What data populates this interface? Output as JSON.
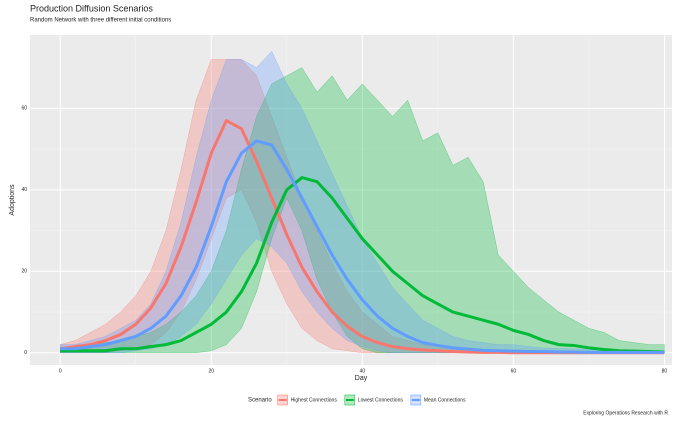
{
  "chart_data": {
    "type": "line-ribbon",
    "title": "Production Diffusion Scenarios",
    "subtitle": "Random Network with three different initial conditions",
    "xlabel": "Day",
    "ylabel": "Adoptions",
    "legend_title": "Scenario",
    "legend": "bottom",
    "caption": "Exploring Operations Research with R",
    "grid": true,
    "xlim": [
      -4,
      81
    ],
    "ylim": [
      -3,
      78
    ],
    "xticks": [
      0,
      20,
      40,
      60,
      80
    ],
    "yticks": [
      0,
      20,
      40,
      60
    ],
    "x": [
      0,
      2,
      4,
      6,
      8,
      10,
      12,
      14,
      16,
      18,
      20,
      22,
      24,
      26,
      28,
      30,
      32,
      34,
      36,
      38,
      40,
      42,
      44,
      46,
      48,
      50,
      52,
      54,
      56,
      58,
      60,
      62,
      64,
      66,
      68,
      70,
      72,
      74,
      76,
      78,
      80
    ],
    "series": [
      {
        "name": "Highest Connections",
        "color": "#F8766D",
        "values": [
          1,
          1.5,
          2,
          3,
          4.5,
          7,
          11,
          17,
          26,
          37,
          49,
          57,
          55,
          47,
          38,
          29,
          21,
          15,
          10,
          6.5,
          4,
          2.5,
          1.5,
          1,
          0.7,
          0.5,
          0.3,
          0.2,
          0.1,
          0.1,
          0,
          0,
          0,
          0,
          0,
          0,
          0,
          0,
          0,
          0,
          0
        ],
        "upper": [
          2,
          3,
          5,
          7,
          10,
          14,
          20,
          30,
          45,
          62,
          72,
          72,
          72,
          68,
          58,
          48,
          38,
          30,
          22,
          15,
          10,
          7,
          4,
          3,
          2,
          1.5,
          1,
          0.8,
          0.5,
          0.4,
          0.3,
          0.2,
          0.2,
          0.2,
          0.2,
          0.2,
          0.2,
          0.2,
          0.2,
          0.2,
          0.2
        ],
        "lower": [
          0,
          0,
          0,
          0,
          0.5,
          1,
          2,
          5,
          10,
          18,
          28,
          38,
          40,
          32,
          20,
          12,
          6,
          3,
          1,
          0.5,
          0,
          0,
          0,
          0,
          0,
          0,
          0,
          0,
          0,
          0,
          0,
          0,
          0,
          0,
          0,
          0,
          0,
          0,
          0,
          0,
          0
        ]
      },
      {
        "name": "Lowest Connections",
        "color": "#00BA38",
        "values": [
          0.5,
          0.5,
          0.5,
          0.5,
          1,
          1,
          1.5,
          2,
          3,
          5,
          7,
          10,
          15,
          22,
          32,
          40,
          43,
          42,
          38,
          33,
          28,
          24,
          20,
          17,
          14,
          12,
          10,
          9,
          8,
          7,
          5.5,
          4.5,
          3,
          2,
          1.8,
          1.2,
          0.8,
          0.5,
          0.4,
          0.3,
          0.2
        ],
        "upper": [
          1,
          1.5,
          2,
          2.5,
          3,
          4,
          5,
          7,
          10,
          14,
          20,
          30,
          45,
          58,
          66,
          68,
          70,
          64,
          68,
          62,
          66,
          62,
          58,
          62,
          52,
          54,
          46,
          48,
          42,
          24,
          20,
          16,
          13,
          10,
          8,
          6,
          5,
          3,
          2.5,
          2,
          2
        ],
        "lower": [
          0,
          0,
          0,
          0,
          0,
          0,
          0,
          0,
          0,
          0,
          0.5,
          2,
          6,
          15,
          28,
          38,
          30,
          18,
          10,
          4,
          1,
          0,
          0,
          0,
          0,
          0,
          0,
          0,
          0,
          0,
          0,
          0,
          0,
          0,
          0,
          0,
          0,
          0,
          0,
          0,
          0
        ]
      },
      {
        "name": "Mean Connections",
        "color": "#619CFF",
        "values": [
          1,
          1,
          1.5,
          2,
          3,
          4,
          6,
          9,
          14,
          21,
          31,
          42,
          49,
          52,
          51,
          45,
          38,
          31,
          24,
          18,
          13,
          9,
          6,
          4,
          2.5,
          1.8,
          1.2,
          0.9,
          0.6,
          0.5,
          0.4,
          0.3,
          0.3,
          0.2,
          0.2,
          0.1,
          0.1,
          0.1,
          0.1,
          0.1,
          0.1
        ],
        "upper": [
          2,
          2,
          3,
          4,
          6,
          8,
          12,
          20,
          32,
          48,
          62,
          72,
          72,
          70,
          74,
          66,
          60,
          52,
          44,
          36,
          28,
          22,
          16,
          12,
          8,
          6,
          4,
          3,
          2.5,
          2,
          2,
          1.5,
          1.2,
          1,
          1,
          0.8,
          0.6,
          0.5,
          0.4,
          0.3,
          0.3
        ],
        "lower": [
          0,
          0,
          0,
          0,
          0,
          0.5,
          1,
          2,
          4,
          7,
          12,
          18,
          24,
          28,
          26,
          22,
          15,
          10,
          6,
          3,
          1.5,
          0.5,
          0,
          0,
          0,
          0,
          0,
          0,
          0,
          0,
          0,
          0,
          0,
          0,
          0,
          0,
          0,
          0,
          0,
          0,
          0
        ]
      }
    ]
  }
}
